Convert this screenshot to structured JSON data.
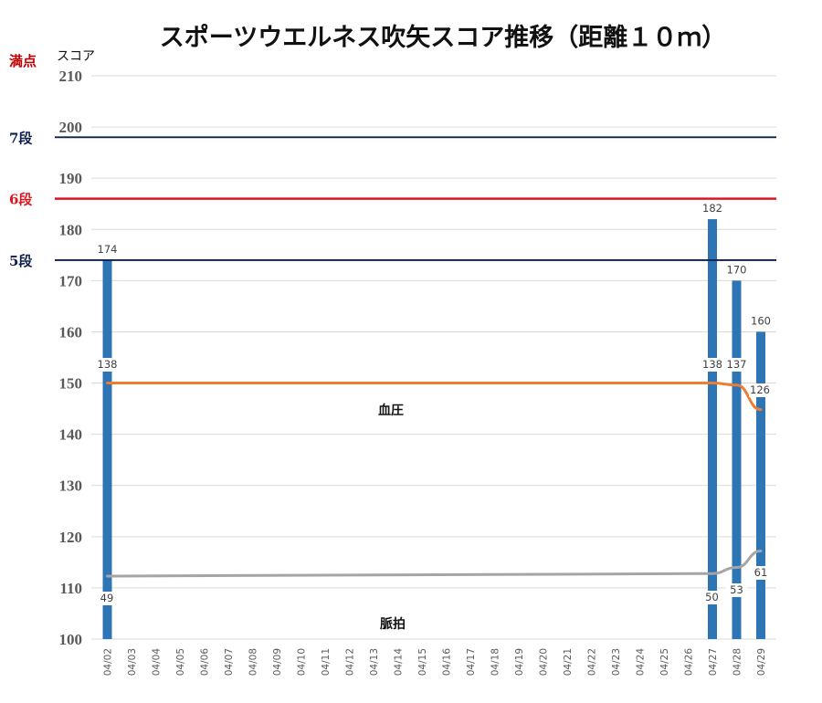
{
  "chart_data": {
    "type": "bar",
    "title": "スポーツウエルネス吹矢スコア推移（距離１０ｍ）",
    "ylabel": "スコア",
    "ylim": [
      100,
      210
    ],
    "yticks": [
      "100",
      "110",
      "120",
      "130",
      "140",
      "150",
      "160",
      "170",
      "180",
      "190",
      "200",
      "210"
    ],
    "grid": true,
    "categories": [
      "04/02",
      "04/03",
      "04/04",
      "04/05",
      "04/06",
      "04/07",
      "04/08",
      "04/09",
      "04/10",
      "04/11",
      "04/12",
      "04/13",
      "04/14",
      "04/15",
      "04/16",
      "04/17",
      "04/18",
      "04/19",
      "04/20",
      "04/21",
      "04/22",
      "04/23",
      "04/24",
      "04/25",
      "04/26",
      "04/27",
      "04/28",
      "04/29"
    ],
    "series": [
      {
        "type": "bar",
        "color": "#2e75b6",
        "values": [
          174,
          null,
          null,
          null,
          null,
          null,
          null,
          null,
          null,
          null,
          null,
          null,
          null,
          null,
          null,
          null,
          null,
          null,
          null,
          null,
          null,
          null,
          null,
          null,
          null,
          182,
          170,
          160
        ],
        "labels": [
          "174",
          null,
          null,
          null,
          null,
          null,
          null,
          null,
          null,
          null,
          null,
          null,
          null,
          null,
          null,
          null,
          null,
          null,
          null,
          null,
          null,
          null,
          null,
          null,
          null,
          "182",
          "170",
          "160"
        ]
      },
      {
        "type": "line",
        "name": "血圧",
        "color": "#ed7d31",
        "raw": [
          138,
          null,
          null,
          null,
          null,
          null,
          null,
          null,
          null,
          null,
          null,
          null,
          null,
          null,
          null,
          null,
          null,
          null,
          null,
          null,
          null,
          null,
          null,
          null,
          null,
          138,
          137,
          126
        ],
        "labels": [
          "138",
          null,
          null,
          null,
          null,
          null,
          null,
          null,
          null,
          null,
          null,
          null,
          null,
          null,
          null,
          null,
          null,
          null,
          null,
          null,
          null,
          null,
          null,
          null,
          null,
          "138",
          "137",
          "126"
        ],
        "plotted": [
          150,
          null,
          null,
          null,
          null,
          null,
          null,
          null,
          null,
          null,
          null,
          null,
          null,
          null,
          null,
          null,
          null,
          null,
          null,
          null,
          null,
          null,
          null,
          null,
          null,
          150,
          149.6,
          144.8
        ]
      },
      {
        "type": "line",
        "name": "脈拍",
        "color": "#a5a5a5",
        "raw": [
          49,
          null,
          null,
          null,
          null,
          null,
          null,
          null,
          null,
          null,
          null,
          null,
          null,
          null,
          null,
          null,
          null,
          null,
          null,
          null,
          null,
          null,
          null,
          null,
          null,
          50,
          53,
          61
        ],
        "labels": [
          "49",
          null,
          null,
          null,
          null,
          null,
          null,
          null,
          null,
          null,
          null,
          null,
          null,
          null,
          null,
          null,
          null,
          null,
          null,
          null,
          null,
          null,
          null,
          null,
          null,
          "50",
          "53",
          "61"
        ],
        "plotted": [
          112.3,
          null,
          null,
          null,
          null,
          null,
          null,
          null,
          null,
          null,
          null,
          null,
          null,
          null,
          null,
          null,
          null,
          null,
          null,
          null,
          null,
          null,
          null,
          null,
          null,
          112.8,
          114,
          117.2
        ]
      }
    ],
    "reference_lines": [
      {
        "label": "満点",
        "value": 210,
        "color": "#c00000"
      },
      {
        "label": "7段",
        "value": 198,
        "color": "#0d1f4c"
      },
      {
        "label": "6段",
        "value": 186,
        "color": "#e0141e"
      },
      {
        "label": "5段",
        "value": 174,
        "color": "#0d1f4c"
      }
    ]
  }
}
